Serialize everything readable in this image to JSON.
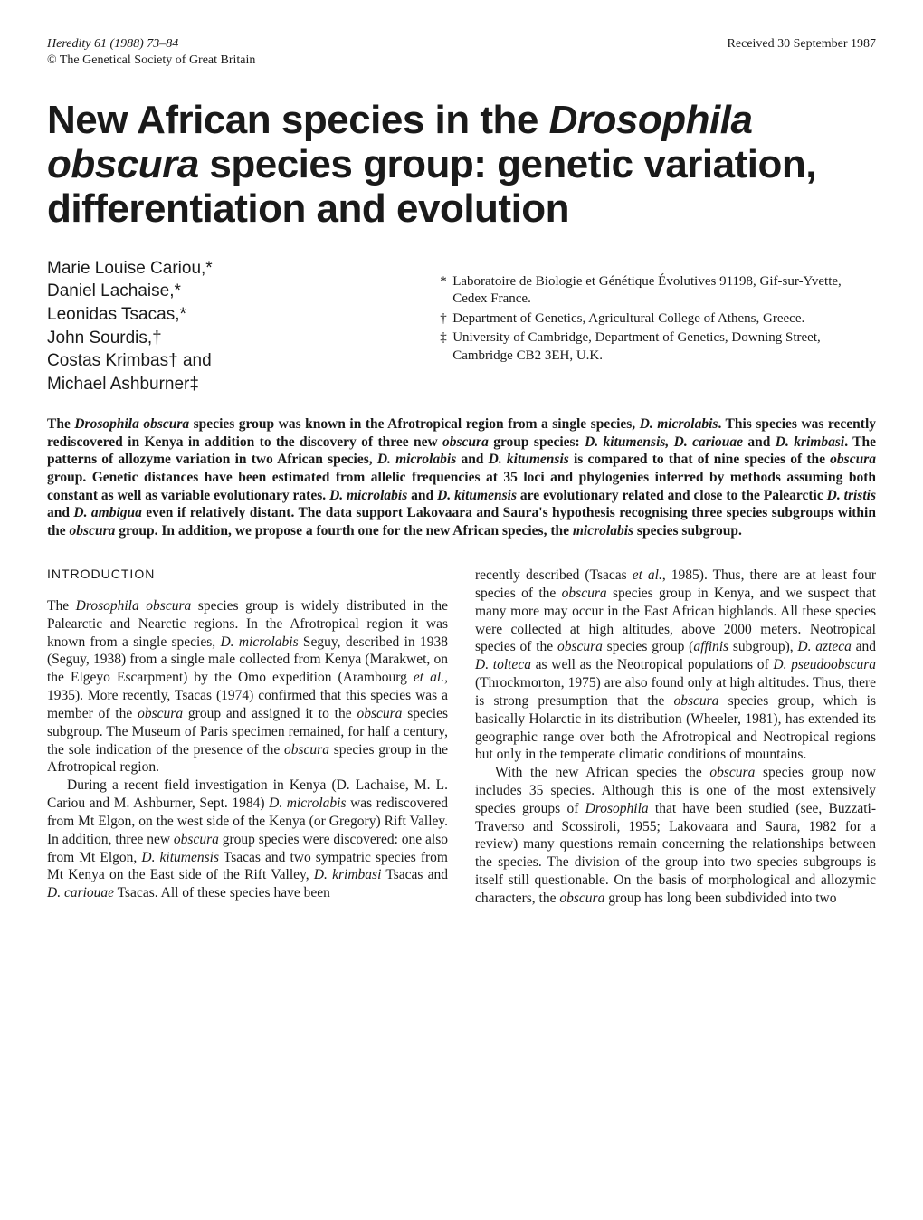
{
  "header": {
    "journal": "Heredity",
    "volume_info": "61 (1988) 73–84",
    "copyright": "© The Genetical Society of Great Britain",
    "received": "Received 30 September 1987"
  },
  "title_parts": {
    "p1": "New African species in the ",
    "p2_ital": "Drosophila obscura",
    "p3": " species group: genetic variation, differentiation and evolution"
  },
  "authors": [
    "Marie Louise Cariou,*",
    "Daniel Lachaise,*",
    "Leonidas Tsacas,*",
    "John Sourdis,†",
    "Costas Krimbas† and",
    "Michael Ashburner‡"
  ],
  "affiliations": [
    {
      "sym": "*",
      "text": "Laboratoire de Biologie et Génétique Évolutives 91198, Gif-sur-Yvette, Cedex France."
    },
    {
      "sym": "†",
      "text": "Department of Genetics, Agricultural College of Athens, Greece."
    },
    {
      "sym": "‡",
      "text": "University of Cambridge, Department of Genetics, Downing Street, Cambridge CB2 3EH, U.K."
    }
  ],
  "abstract": {
    "s1": "The ",
    "s2_ital": "Drosophila obscura",
    "s3": " species group was known in the Afrotropical region from a single species, ",
    "s4_ital": "D. microlabis",
    "s5": ". This species was recently rediscovered in Kenya in addition to the discovery of three new ",
    "s6_ital": "obscura",
    "s7": " group species: ",
    "s8_ital": "D. kitumensis, D. cariouae",
    "s9": " and ",
    "s10_ital": "D. krimbasi",
    "s11": ". The patterns of allozyme variation in two African species, ",
    "s12_ital": "D. microlabis",
    "s13": " and ",
    "s14_ital": "D. kitumensis",
    "s15": " is compared to that of nine species of the ",
    "s16_ital": "obscura",
    "s17": " group. Genetic distances have been estimated from allelic frequencies at 35 loci and phylogenies inferred by methods assuming both constant as well as variable evolutionary rates. ",
    "s18_ital": "D. microlabis",
    "s19": " and ",
    "s20_ital": "D. kitumensis",
    "s21": " are evolutionary related and close to the Palearctic ",
    "s22_ital": "D. tristis",
    "s23": " and ",
    "s24_ital": "D. ambigua",
    "s25": " even if relatively distant. The data support Lakovaara and Saura's hypothesis recognising three species subgroups within the ",
    "s26_ital": "obscura",
    "s27": " group. In addition, we propose a fourth one for the new African species, the ",
    "s28_ital": "microlabis",
    "s29": " species subgroup."
  },
  "section_heading": "INTRODUCTION",
  "col1": {
    "p1": {
      "s1": "The ",
      "s2_ital": "Drosophila obscura",
      "s3": " species group is widely distributed in the Palearctic and Nearctic regions. In the Afrotropical region it was known from a single species, ",
      "s4_ital": "D. microlabis",
      "s5": " Seguy, described in 1938 (Seguy, 1938) from a single male collected from Kenya (Marakwet, on the Elgeyo Escarpment) by the Omo expedition (Arambourg ",
      "s6_ital": "et al.",
      "s7": ", 1935). More recently, Tsacas (1974) confirmed that this species was a member of the ",
      "s8_ital": "obscura",
      "s9": " group and assigned it to the ",
      "s10_ital": "obscura",
      "s11": " species subgroup. The Museum of Paris specimen remained, for half a century, the sole indication of the presence of the ",
      "s12_ital": "obscura",
      "s13": " species group in the Afrotropical region."
    },
    "p2": {
      "s1": "During a recent field investigation in Kenya (D. Lachaise, M. L. Cariou and M. Ashburner, Sept. 1984) ",
      "s2_ital": "D. microlabis",
      "s3": " was rediscovered from Mt Elgon, on the west side of the Kenya (or Gregory) Rift Valley. In addition, three new ",
      "s4_ital": "obscura",
      "s5": " group species were discovered: one also from Mt Elgon, ",
      "s6_ital": "D. kitumensis",
      "s7": " Tsacas and two sympatric species from Mt Kenya on the East side of the Rift Valley, ",
      "s8_ital": "D. krimbasi",
      "s9": " Tsacas and ",
      "s10_ital": "D. cariouae",
      "s11": " Tsacas. All of these species have been"
    }
  },
  "col2": {
    "p1": {
      "s1": "recently described (Tsacas ",
      "s2_ital": "et al.",
      "s3": ", 1985). Thus, there are at least four species of the ",
      "s4_ital": "obscura",
      "s5": " species group in Kenya, and we suspect that many more may occur in the East African highlands. All these species were collected at high altitudes, above 2000 meters. Neotropical species of the ",
      "s6_ital": "obscura",
      "s7": " species group (",
      "s8_ital": "affinis",
      "s9": " subgroup), ",
      "s10_ital": "D. azteca",
      "s11": " and ",
      "s12_ital": "D. tolteca",
      "s13": " as well as the Neotropical populations of ",
      "s14_ital": "D. pseudoobscura",
      "s15": " (Throckmorton, 1975) are also found only at high altitudes. Thus, there is strong presumption that the ",
      "s16_ital": "obscura",
      "s17": " species group, which is basically Holarctic in its distribution (Wheeler, 1981), has extended its geographic range over both the Afrotropical and Neotropical regions but only in the temperate climatic conditions of mountains."
    },
    "p2": {
      "s1": "With the new African species the ",
      "s2_ital": "obscura",
      "s3": " species group now includes 35 species. Although this is one of the most extensively species groups of ",
      "s4_ital": "Drosophila",
      "s5": " that have been studied (see, Buzzati-Traverso and Scossiroli, 1955; Lakovaara and Saura, 1982 for a review) many questions remain concerning the relationships between the species. The division of the group into two species subgroups is itself still questionable. On the basis of morphological and allozymic characters, the ",
      "s6_ital": "obscura",
      "s7": " group has long been subdivided into two"
    }
  }
}
